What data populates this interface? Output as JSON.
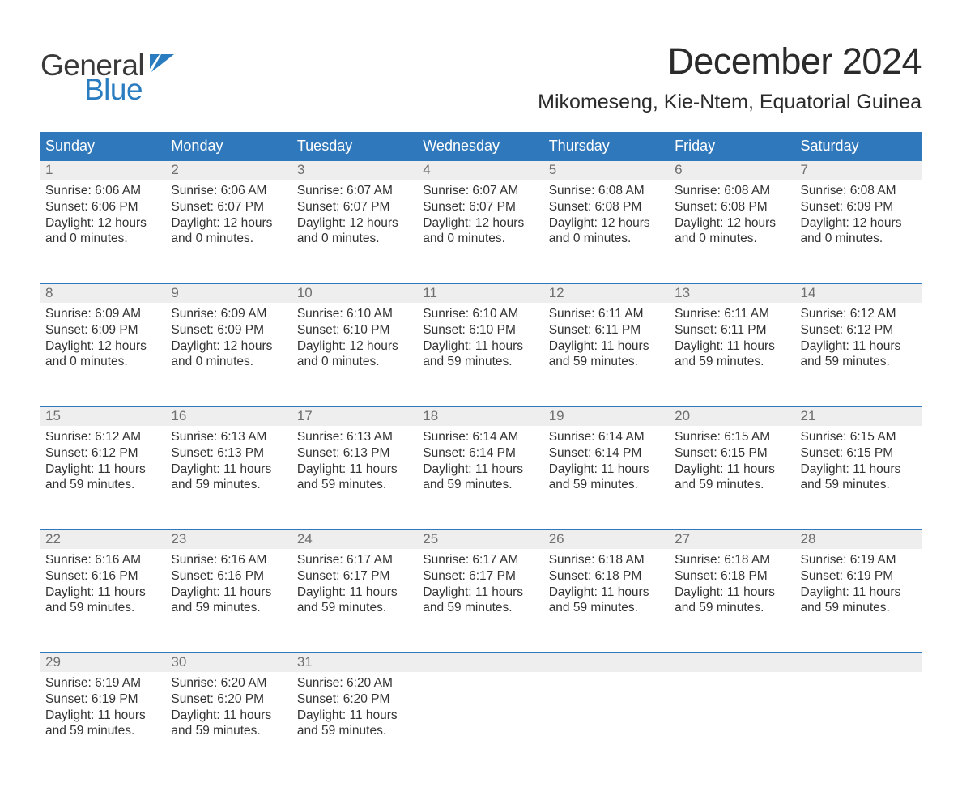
{
  "logo": {
    "text_top": "General",
    "text_bottom": "Blue",
    "flag_color": "#2a7cc0",
    "top_color": "#3a3a3a",
    "bottom_color": "#2a7cc0"
  },
  "title": "December 2024",
  "location": "Mikomeseng, Kie-Ntem, Equatorial Guinea",
  "header_bg_color": "#2f78bb",
  "header_text_color": "#ffffff",
  "daynum_bg_color": "#eeeeee",
  "daynum_border_color": "#2f78bb",
  "body_text_color": "#333333",
  "day_headers": [
    "Sunday",
    "Monday",
    "Tuesday",
    "Wednesday",
    "Thursday",
    "Friday",
    "Saturday"
  ],
  "weeks": [
    [
      {
        "num": "1",
        "sunrise": "Sunrise: 6:06 AM",
        "sunset": "Sunset: 6:06 PM",
        "dl1": "Daylight: 12 hours",
        "dl2": "and 0 minutes."
      },
      {
        "num": "2",
        "sunrise": "Sunrise: 6:06 AM",
        "sunset": "Sunset: 6:07 PM",
        "dl1": "Daylight: 12 hours",
        "dl2": "and 0 minutes."
      },
      {
        "num": "3",
        "sunrise": "Sunrise: 6:07 AM",
        "sunset": "Sunset: 6:07 PM",
        "dl1": "Daylight: 12 hours",
        "dl2": "and 0 minutes."
      },
      {
        "num": "4",
        "sunrise": "Sunrise: 6:07 AM",
        "sunset": "Sunset: 6:07 PM",
        "dl1": "Daylight: 12 hours",
        "dl2": "and 0 minutes."
      },
      {
        "num": "5",
        "sunrise": "Sunrise: 6:08 AM",
        "sunset": "Sunset: 6:08 PM",
        "dl1": "Daylight: 12 hours",
        "dl2": "and 0 minutes."
      },
      {
        "num": "6",
        "sunrise": "Sunrise: 6:08 AM",
        "sunset": "Sunset: 6:08 PM",
        "dl1": "Daylight: 12 hours",
        "dl2": "and 0 minutes."
      },
      {
        "num": "7",
        "sunrise": "Sunrise: 6:08 AM",
        "sunset": "Sunset: 6:09 PM",
        "dl1": "Daylight: 12 hours",
        "dl2": "and 0 minutes."
      }
    ],
    [
      {
        "num": "8",
        "sunrise": "Sunrise: 6:09 AM",
        "sunset": "Sunset: 6:09 PM",
        "dl1": "Daylight: 12 hours",
        "dl2": "and 0 minutes."
      },
      {
        "num": "9",
        "sunrise": "Sunrise: 6:09 AM",
        "sunset": "Sunset: 6:09 PM",
        "dl1": "Daylight: 12 hours",
        "dl2": "and 0 minutes."
      },
      {
        "num": "10",
        "sunrise": "Sunrise: 6:10 AM",
        "sunset": "Sunset: 6:10 PM",
        "dl1": "Daylight: 12 hours",
        "dl2": "and 0 minutes."
      },
      {
        "num": "11",
        "sunrise": "Sunrise: 6:10 AM",
        "sunset": "Sunset: 6:10 PM",
        "dl1": "Daylight: 11 hours",
        "dl2": "and 59 minutes."
      },
      {
        "num": "12",
        "sunrise": "Sunrise: 6:11 AM",
        "sunset": "Sunset: 6:11 PM",
        "dl1": "Daylight: 11 hours",
        "dl2": "and 59 minutes."
      },
      {
        "num": "13",
        "sunrise": "Sunrise: 6:11 AM",
        "sunset": "Sunset: 6:11 PM",
        "dl1": "Daylight: 11 hours",
        "dl2": "and 59 minutes."
      },
      {
        "num": "14",
        "sunrise": "Sunrise: 6:12 AM",
        "sunset": "Sunset: 6:12 PM",
        "dl1": "Daylight: 11 hours",
        "dl2": "and 59 minutes."
      }
    ],
    [
      {
        "num": "15",
        "sunrise": "Sunrise: 6:12 AM",
        "sunset": "Sunset: 6:12 PM",
        "dl1": "Daylight: 11 hours",
        "dl2": "and 59 minutes."
      },
      {
        "num": "16",
        "sunrise": "Sunrise: 6:13 AM",
        "sunset": "Sunset: 6:13 PM",
        "dl1": "Daylight: 11 hours",
        "dl2": "and 59 minutes."
      },
      {
        "num": "17",
        "sunrise": "Sunrise: 6:13 AM",
        "sunset": "Sunset: 6:13 PM",
        "dl1": "Daylight: 11 hours",
        "dl2": "and 59 minutes."
      },
      {
        "num": "18",
        "sunrise": "Sunrise: 6:14 AM",
        "sunset": "Sunset: 6:14 PM",
        "dl1": "Daylight: 11 hours",
        "dl2": "and 59 minutes."
      },
      {
        "num": "19",
        "sunrise": "Sunrise: 6:14 AM",
        "sunset": "Sunset: 6:14 PM",
        "dl1": "Daylight: 11 hours",
        "dl2": "and 59 minutes."
      },
      {
        "num": "20",
        "sunrise": "Sunrise: 6:15 AM",
        "sunset": "Sunset: 6:15 PM",
        "dl1": "Daylight: 11 hours",
        "dl2": "and 59 minutes."
      },
      {
        "num": "21",
        "sunrise": "Sunrise: 6:15 AM",
        "sunset": "Sunset: 6:15 PM",
        "dl1": "Daylight: 11 hours",
        "dl2": "and 59 minutes."
      }
    ],
    [
      {
        "num": "22",
        "sunrise": "Sunrise: 6:16 AM",
        "sunset": "Sunset: 6:16 PM",
        "dl1": "Daylight: 11 hours",
        "dl2": "and 59 minutes."
      },
      {
        "num": "23",
        "sunrise": "Sunrise: 6:16 AM",
        "sunset": "Sunset: 6:16 PM",
        "dl1": "Daylight: 11 hours",
        "dl2": "and 59 minutes."
      },
      {
        "num": "24",
        "sunrise": "Sunrise: 6:17 AM",
        "sunset": "Sunset: 6:17 PM",
        "dl1": "Daylight: 11 hours",
        "dl2": "and 59 minutes."
      },
      {
        "num": "25",
        "sunrise": "Sunrise: 6:17 AM",
        "sunset": "Sunset: 6:17 PM",
        "dl1": "Daylight: 11 hours",
        "dl2": "and 59 minutes."
      },
      {
        "num": "26",
        "sunrise": "Sunrise: 6:18 AM",
        "sunset": "Sunset: 6:18 PM",
        "dl1": "Daylight: 11 hours",
        "dl2": "and 59 minutes."
      },
      {
        "num": "27",
        "sunrise": "Sunrise: 6:18 AM",
        "sunset": "Sunset: 6:18 PM",
        "dl1": "Daylight: 11 hours",
        "dl2": "and 59 minutes."
      },
      {
        "num": "28",
        "sunrise": "Sunrise: 6:19 AM",
        "sunset": "Sunset: 6:19 PM",
        "dl1": "Daylight: 11 hours",
        "dl2": "and 59 minutes."
      }
    ],
    [
      {
        "num": "29",
        "sunrise": "Sunrise: 6:19 AM",
        "sunset": "Sunset: 6:19 PM",
        "dl1": "Daylight: 11 hours",
        "dl2": "and 59 minutes."
      },
      {
        "num": "30",
        "sunrise": "Sunrise: 6:20 AM",
        "sunset": "Sunset: 6:20 PM",
        "dl1": "Daylight: 11 hours",
        "dl2": "and 59 minutes."
      },
      {
        "num": "31",
        "sunrise": "Sunrise: 6:20 AM",
        "sunset": "Sunset: 6:20 PM",
        "dl1": "Daylight: 11 hours",
        "dl2": "and 59 minutes."
      },
      {
        "num": "",
        "sunrise": "",
        "sunset": "",
        "dl1": "",
        "dl2": ""
      },
      {
        "num": "",
        "sunrise": "",
        "sunset": "",
        "dl1": "",
        "dl2": ""
      },
      {
        "num": "",
        "sunrise": "",
        "sunset": "",
        "dl1": "",
        "dl2": ""
      },
      {
        "num": "",
        "sunrise": "",
        "sunset": "",
        "dl1": "",
        "dl2": ""
      }
    ]
  ]
}
